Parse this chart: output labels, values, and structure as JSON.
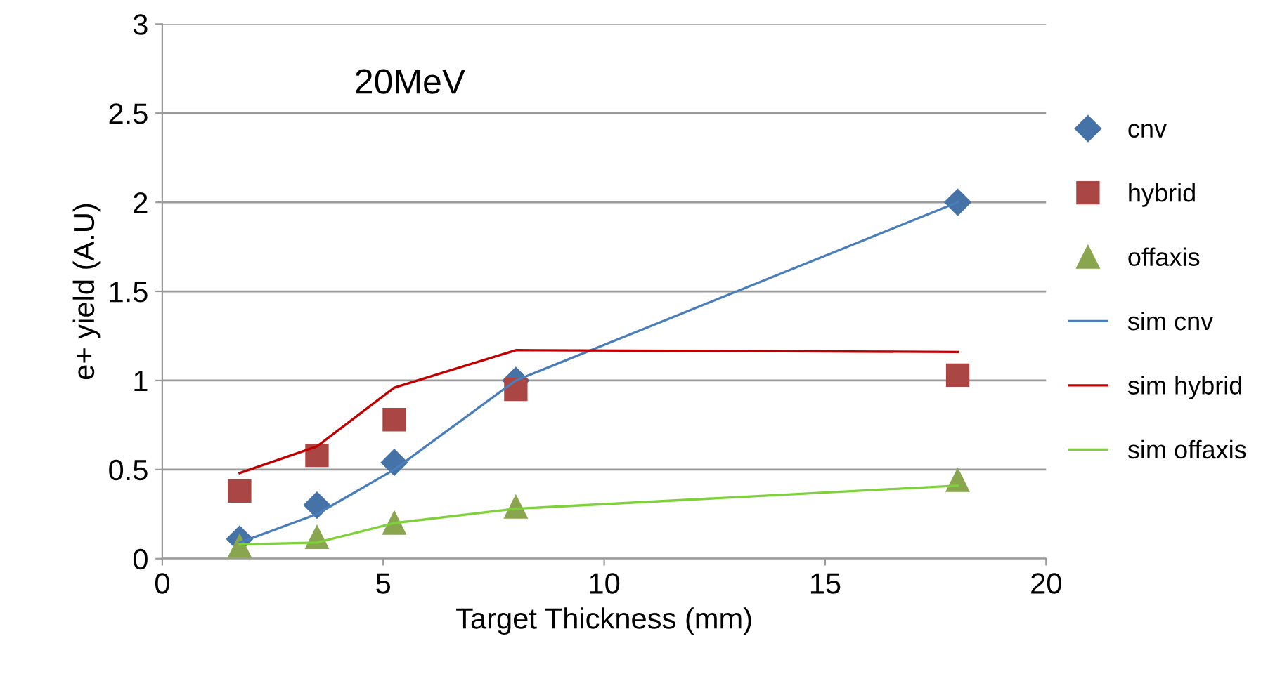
{
  "chart_data": {
    "type": "line",
    "xlabel": "Target Thickness (mm)",
    "ylabel": "e+ yield (A.U)",
    "annotations": [
      "20MeV"
    ],
    "x": [
      1.75,
      3.5,
      5.25,
      8,
      18
    ],
    "series": [
      {
        "name": "cnv",
        "type": "scatter",
        "marker": "diamond",
        "color": "#4572a7",
        "values": [
          0.11,
          0.3,
          0.54,
          1.0,
          2.0
        ]
      },
      {
        "name": "hybrid",
        "type": "scatter",
        "marker": "square",
        "color": "#aa4643",
        "values": [
          0.38,
          0.58,
          0.78,
          0.95,
          1.03
        ]
      },
      {
        "name": "offaxis",
        "type": "scatter",
        "marker": "triangle",
        "color": "#89a54e",
        "values": [
          0.07,
          0.12,
          0.2,
          0.29,
          0.44
        ]
      },
      {
        "name": "sim cnv",
        "marker": "none",
        "color": "#4a7ebb",
        "values": [
          0.09,
          0.25,
          0.5,
          1.0,
          2.0
        ]
      },
      {
        "name": "sim hybrid",
        "marker": "none",
        "color": "#c00000",
        "values": [
          0.48,
          0.63,
          0.96,
          1.17,
          1.16
        ]
      },
      {
        "name": "sim offaxis",
        "marker": "none",
        "color": "#7fd13b",
        "values": [
          0.08,
          0.09,
          0.2,
          0.28,
          0.41
        ]
      }
    ],
    "xlim": [
      0,
      20
    ],
    "xticks": [
      0,
      5,
      10,
      15,
      20
    ],
    "ylim": [
      0,
      3
    ],
    "yticks": [
      0,
      0.5,
      1,
      1.5,
      2,
      2.5,
      3
    ],
    "grid": "y",
    "legend": "right"
  }
}
